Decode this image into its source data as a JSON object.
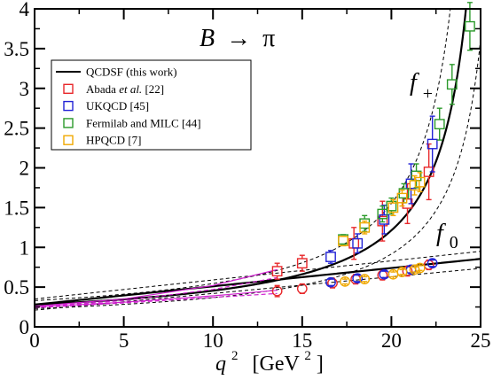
{
  "chart_data": {
    "type": "scatter",
    "title": "",
    "xlabel": "q",
    "xlabel_sup": "2",
    "xlabel_unit_pre": "[GeV",
    "xlabel_unit_sup": "2",
    "xlabel_unit_post": "]",
    "ylabel": "",
    "xlim": [
      0,
      25
    ],
    "ylim": [
      0,
      4
    ],
    "x_ticks": [
      "0",
      "5",
      "10",
      "15",
      "20",
      "25"
    ],
    "y_ticks": [
      "0",
      "0.5",
      "1",
      "1.5",
      "2",
      "2.5",
      "3",
      "3.5",
      "4"
    ],
    "grid": false,
    "legend_position": "top-left",
    "annotations": {
      "process_lhs": "B",
      "process_arrow": "→",
      "process_rhs": "π",
      "fplus_base": "f",
      "fplus_sub": "+",
      "fzero_base": "f",
      "fzero_sub": "0"
    },
    "legend": [
      {
        "label": "QCDSF (this work)",
        "marker": "line",
        "color": "#000000"
      },
      {
        "label_parts": [
          "Abada ",
          "et al.",
          " [22]"
        ],
        "marker": "square",
        "color": "#e8282b"
      },
      {
        "label": "UKQCD [45]",
        "marker": "square",
        "color": "#2323d6"
      },
      {
        "label": "Fermilab and MILC [44]",
        "marker": "square",
        "color": "#2b9a2b"
      },
      {
        "label": "HPQCD [7]",
        "marker": "square",
        "color": "#f0a800"
      }
    ],
    "curves": {
      "fplus_band": {
        "color": "#000000",
        "center_at_0": 0.28,
        "upper_at_0": 0.33,
        "lower_at_0": 0.23,
        "pole_center": 26.0,
        "pole_upper": 25.4,
        "pole_lower": 26.7
      },
      "fzero_band": {
        "color": "#000000",
        "center_at_0": 0.28,
        "upper_at_0": 0.35,
        "lower_at_0": 0.21,
        "slope_center": 0.023,
        "slope_upper": 0.024,
        "slope_lower": 0.021
      },
      "magenta_lines": [
        {
          "color": "#d020d0",
          "x": [
            0,
            5,
            10,
            13.6
          ],
          "y": [
            0.26,
            0.35,
            0.52,
            0.72
          ]
        },
        {
          "color": "#d020d0",
          "x": [
            0,
            5,
            10,
            13.6
          ],
          "y": [
            0.25,
            0.33,
            0.47,
            0.62
          ]
        },
        {
          "color": "#d020d0",
          "x": [
            0,
            5,
            10,
            13.6
          ],
          "y": [
            0.25,
            0.31,
            0.39,
            0.46
          ]
        },
        {
          "color": "#d020d0",
          "x": [
            0,
            5,
            10,
            13.6
          ],
          "y": [
            0.24,
            0.3,
            0.37,
            0.42
          ]
        }
      ]
    },
    "series": [
      {
        "name": "Abada et al. [22]",
        "color": "#e8282b",
        "fplus": [
          {
            "x": 13.6,
            "y": 0.7,
            "err": 0.1
          },
          {
            "x": 15.0,
            "y": 0.8,
            "err": 0.1
          },
          {
            "x": 17.9,
            "y": 1.05,
            "err": 0.2
          },
          {
            "x": 19.5,
            "y": 1.33,
            "err": 0.25
          },
          {
            "x": 20.9,
            "y": 1.55,
            "err": 0.25
          },
          {
            "x": 22.1,
            "y": 1.95,
            "err": 0.35
          }
        ],
        "fzero": [
          {
            "x": 13.6,
            "y": 0.45,
            "err": 0.07
          },
          {
            "x": 15.0,
            "y": 0.48,
            "err": 0.06
          },
          {
            "x": 16.7,
            "y": 0.55,
            "err": 0.06
          },
          {
            "x": 18.0,
            "y": 0.6,
            "err": 0.06
          },
          {
            "x": 19.5,
            "y": 0.65,
            "err": 0.06
          },
          {
            "x": 20.9,
            "y": 0.7,
            "err": 0.06
          },
          {
            "x": 22.1,
            "y": 0.78,
            "err": 0.06
          }
        ]
      },
      {
        "name": "UKQCD [45]",
        "color": "#2323d6",
        "fplus": [
          {
            "x": 16.6,
            "y": 0.88,
            "err": 0.08
          },
          {
            "x": 18.1,
            "y": 1.05,
            "err": 0.12
          },
          {
            "x": 19.6,
            "y": 1.35,
            "err": 0.18
          },
          {
            "x": 21.1,
            "y": 1.8,
            "err": 0.25
          },
          {
            "x": 22.3,
            "y": 2.3,
            "err": 0.35
          }
        ],
        "fzero": [
          {
            "x": 16.6,
            "y": 0.56,
            "err": 0.04
          },
          {
            "x": 18.1,
            "y": 0.61,
            "err": 0.04
          },
          {
            "x": 19.6,
            "y": 0.66,
            "err": 0.04
          },
          {
            "x": 21.1,
            "y": 0.72,
            "err": 0.04
          },
          {
            "x": 22.3,
            "y": 0.8,
            "err": 0.04
          }
        ]
      },
      {
        "name": "Fermilab and MILC [44]",
        "color": "#2b9a2b",
        "fplus": [
          {
            "x": 17.3,
            "y": 1.1,
            "err": 0.06
          },
          {
            "x": 18.5,
            "y": 1.3,
            "err": 0.1
          },
          {
            "x": 19.5,
            "y": 1.42,
            "err": 0.1
          },
          {
            "x": 20.0,
            "y": 1.52,
            "err": 0.1
          },
          {
            "x": 20.7,
            "y": 1.68,
            "err": 0.12
          },
          {
            "x": 21.4,
            "y": 1.9,
            "err": 0.15
          },
          {
            "x": 22.7,
            "y": 2.55,
            "err": 0.2
          },
          {
            "x": 23.4,
            "y": 3.05,
            "err": 0.25
          },
          {
            "x": 24.4,
            "y": 3.78,
            "err": 0.3
          }
        ],
        "fzero": []
      },
      {
        "name": "HPQCD [7]",
        "color": "#f0a800",
        "fplus": [
          {
            "x": 17.3,
            "y": 1.08,
            "err": 0.06
          },
          {
            "x": 18.5,
            "y": 1.25,
            "err": 0.08
          },
          {
            "x": 20.1,
            "y": 1.5,
            "err": 0.1
          },
          {
            "x": 20.6,
            "y": 1.62,
            "err": 0.1
          },
          {
            "x": 21.3,
            "y": 1.78,
            "err": 0.12
          },
          {
            "x": 21.6,
            "y": 1.82,
            "err": 0.12
          }
        ],
        "fzero": [
          {
            "x": 17.4,
            "y": 0.57,
            "err": 0.03
          },
          {
            "x": 18.5,
            "y": 0.6,
            "err": 0.03
          },
          {
            "x": 20.1,
            "y": 0.66,
            "err": 0.03
          },
          {
            "x": 20.6,
            "y": 0.69,
            "err": 0.03
          },
          {
            "x": 21.3,
            "y": 0.72,
            "err": 0.03
          },
          {
            "x": 21.6,
            "y": 0.74,
            "err": 0.03
          }
        ]
      }
    ]
  }
}
